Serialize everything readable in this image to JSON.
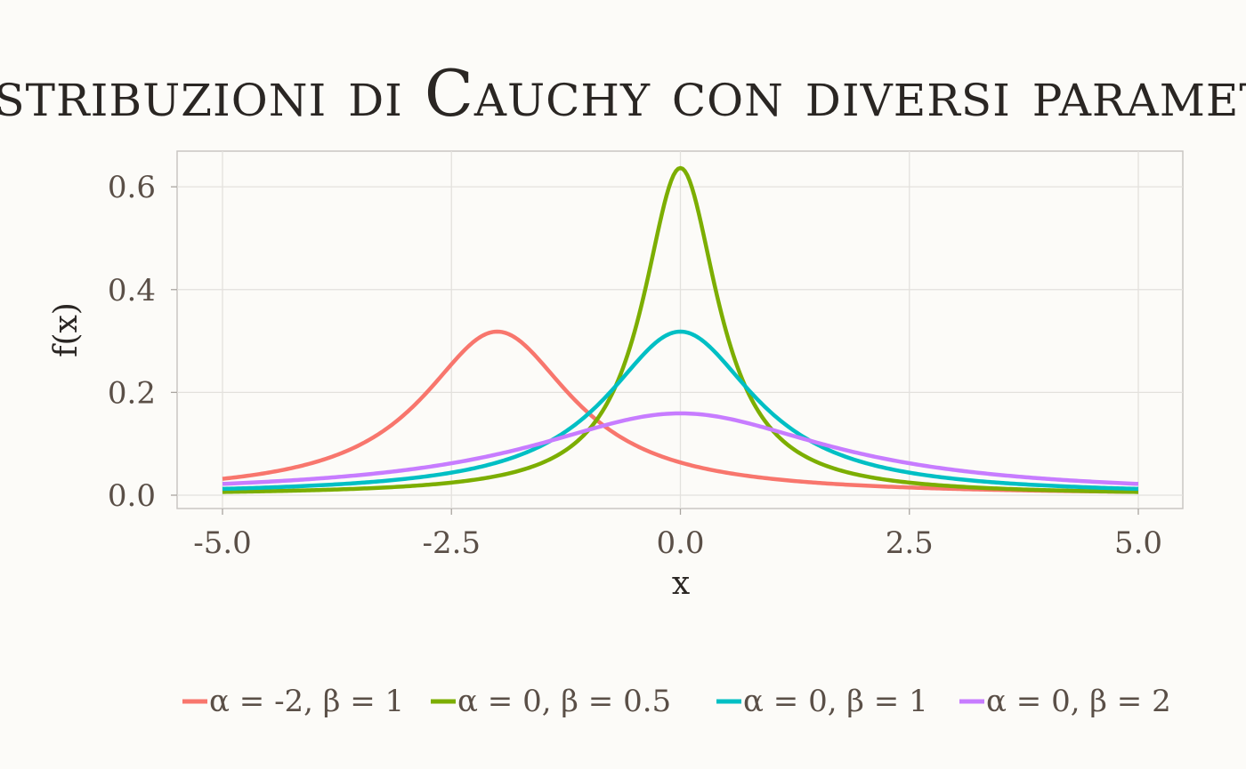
{
  "chart_data": {
    "type": "line",
    "title": "Distribuzioni di Cauchy con diversi parametri",
    "xlabel": "x",
    "ylabel": "f(x)",
    "xlim": [
      -5.0,
      5.0
    ],
    "ylim": [
      0.0,
      0.64
    ],
    "xticks": [
      "-5.0",
      "-2.5",
      "0.0",
      "2.5",
      "5.0"
    ],
    "yticks": [
      "0.0",
      "0.2",
      "0.4",
      "0.6"
    ],
    "grid": true,
    "legend_position": "bottom",
    "series": [
      {
        "name": "α = -2, β = 1",
        "alpha": -2,
        "beta": 1,
        "color": "#f8766d",
        "x": [
          -5,
          -4,
          -3,
          -2.5,
          -2,
          -1.5,
          -1,
          0,
          1,
          2,
          3,
          4,
          5
        ],
        "values": [
          0.032,
          0.064,
          0.159,
          0.255,
          0.318,
          0.255,
          0.159,
          0.064,
          0.032,
          0.019,
          0.012,
          0.009,
          0.006
        ]
      },
      {
        "name": "α = 0, β = 0.5",
        "alpha": 0,
        "beta": 0.5,
        "color": "#7cae00",
        "x": [
          -5,
          -4,
          -3,
          -2,
          -1,
          -0.5,
          0,
          0.5,
          1,
          2,
          3,
          4,
          5
        ],
        "values": [
          0.006,
          0.01,
          0.017,
          0.037,
          0.127,
          0.318,
          0.637,
          0.318,
          0.127,
          0.037,
          0.017,
          0.01,
          0.006
        ]
      },
      {
        "name": "α = 0, β = 1",
        "alpha": 0,
        "beta": 1,
        "color": "#00bfc4",
        "x": [
          -5,
          -4,
          -3,
          -2,
          -1,
          0,
          1,
          2,
          3,
          4,
          5
        ],
        "values": [
          0.012,
          0.019,
          0.032,
          0.064,
          0.159,
          0.318,
          0.159,
          0.064,
          0.032,
          0.019,
          0.012
        ]
      },
      {
        "name": "α = 0, β = 2",
        "alpha": 0,
        "beta": 2,
        "color": "#c77cff",
        "x": [
          -5,
          -4,
          -3,
          -2,
          -1,
          0,
          1,
          2,
          3,
          4,
          5
        ],
        "values": [
          0.022,
          0.032,
          0.049,
          0.08,
          0.127,
          0.159,
          0.127,
          0.08,
          0.049,
          0.032,
          0.022
        ]
      }
    ]
  }
}
